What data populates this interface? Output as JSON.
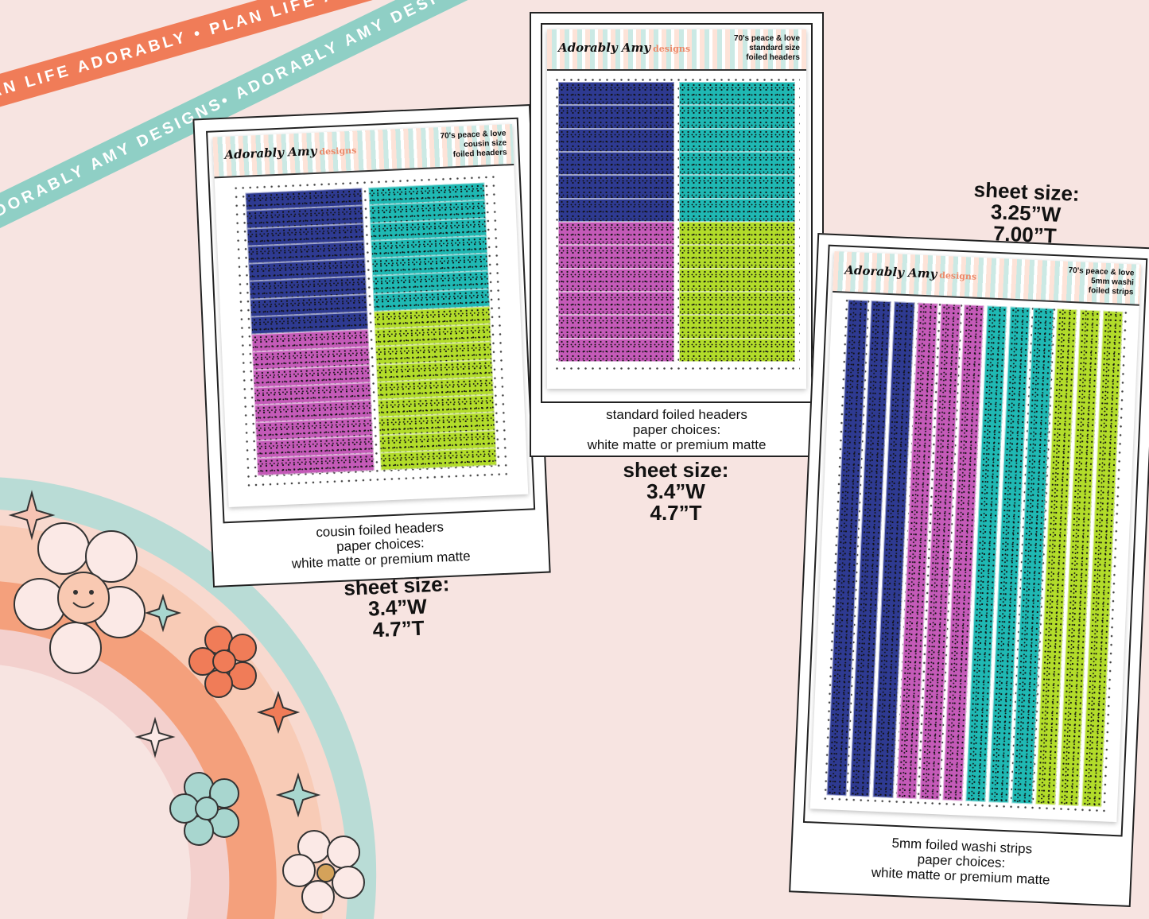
{
  "ribbons": {
    "orange_text": "PLAN LIFE ADORABLY • PLAN LIFE ADORABLY • PLAN LIFE ADORABLY",
    "teal_text": "ADORABLY AMY DESIGNS• ADORABLY AMY DESIGNS• ADORABLY AMY DESIGNS",
    "orange_color": "#f07c58",
    "teal_color": "#8fcfc5"
  },
  "brand": {
    "name": "Adorably Amy",
    "sub": "designs"
  },
  "cards": {
    "cousin": {
      "header_line1": "70's peace & love",
      "header_line2": "cousin size",
      "header_line3": "foiled headers",
      "caption_line1": "cousin foiled headers",
      "caption_line2": "paper choices:",
      "caption_line3": "white matte or premium matte",
      "size_label": "sheet size:",
      "size_w": "3.4”W",
      "size_t": "4.7”T"
    },
    "standard": {
      "header_line1": "70's peace & love",
      "header_line2": "standard size",
      "header_line3": "foiled headers",
      "caption_line1": "standard foiled headers",
      "caption_line2": "paper choices:",
      "caption_line3": "white matte or premium matte",
      "size_label": "sheet size:",
      "size_w": "3.4”W",
      "size_t": "4.7”T"
    },
    "washi": {
      "header_line1": "70's peace & love",
      "header_line2": "5mm washi",
      "header_line3": "foiled strips",
      "caption_line1": "5mm foiled washi strips",
      "caption_line2": "paper choices:",
      "caption_line3": "white matte or premium matte",
      "size_label": "sheet size:",
      "size_w": "3.25”W",
      "size_t": "7.00”T"
    }
  },
  "colors": {
    "navy": "#2e3a91",
    "teal": "#1fb8b3",
    "magenta": "#c45ab8",
    "lime": "#b2dc2a",
    "background": "#f7e4e1"
  }
}
